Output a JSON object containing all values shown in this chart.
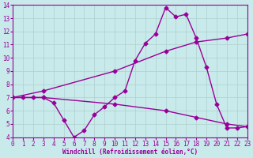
{
  "xlabel": "Windchill (Refroidissement éolien,°C)",
  "xlim": [
    0,
    23
  ],
  "ylim": [
    4,
    14
  ],
  "yticks": [
    4,
    5,
    6,
    7,
    8,
    9,
    10,
    11,
    12,
    13,
    14
  ],
  "xticks": [
    0,
    1,
    2,
    3,
    4,
    5,
    6,
    7,
    8,
    9,
    10,
    11,
    12,
    13,
    14,
    15,
    16,
    17,
    18,
    19,
    20,
    21,
    22,
    23
  ],
  "bg_color": "#c8eaea",
  "line_color": "#990099",
  "grid_color": "#b0d0d0",
  "line1_x": [
    0,
    1,
    2,
    3,
    4,
    5,
    6,
    7,
    8,
    9,
    10,
    11,
    12,
    13,
    14,
    15,
    16,
    17,
    18,
    19,
    20,
    21,
    22,
    23
  ],
  "line1_y": [
    7.0,
    7.0,
    7.0,
    7.0,
    6.6,
    5.3,
    4.0,
    4.5,
    5.7,
    6.3,
    7.0,
    7.5,
    9.8,
    11.1,
    11.8,
    13.8,
    13.1,
    13.3,
    11.5,
    9.3,
    6.5,
    4.7,
    4.7,
    4.8
  ],
  "line2_x": [
    0,
    3,
    10,
    15,
    18,
    21,
    23
  ],
  "line2_y": [
    7.0,
    7.5,
    9.0,
    10.5,
    11.2,
    11.5,
    11.8
  ],
  "line3_x": [
    0,
    3,
    10,
    15,
    18,
    21,
    23
  ],
  "line3_y": [
    7.0,
    7.0,
    6.5,
    6.0,
    5.5,
    5.0,
    4.8
  ],
  "markersize": 2.5,
  "linewidth": 1.0
}
